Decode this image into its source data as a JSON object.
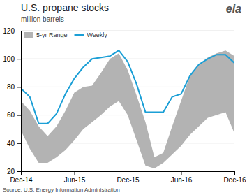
{
  "chart_data": {
    "type": "area_line",
    "title": "U.S. propane stocks",
    "subtitle": "million barrels",
    "source": "Source: U.S. Energy Information Administration",
    "annotations": [
      "eia"
    ],
    "categories": [
      "Dec-14",
      null,
      null,
      null,
      null,
      null,
      "Jun-15",
      null,
      null,
      null,
      null,
      null,
      "Dec-15",
      null,
      null,
      null,
      null,
      null,
      "Jun-16",
      null,
      null,
      null,
      null,
      null,
      "Dec-16"
    ],
    "series": [
      {
        "name": "5-yr Range",
        "type": "area",
        "color": "#b3b3b3",
        "lower": [
          49,
          36,
          26,
          26,
          30,
          35,
          42,
          50,
          55,
          60,
          66,
          70,
          60,
          42,
          24,
          22,
          26,
          32,
          38,
          46,
          52,
          58,
          60,
          62,
          47
        ],
        "upper": [
          70,
          63,
          52,
          45,
          52,
          63,
          76,
          80,
          81,
          90,
          100,
          104,
          92,
          74,
          55,
          30,
          33,
          52,
          70,
          88,
          96,
          101,
          104,
          106,
          102
        ]
      },
      {
        "name": "Weekly",
        "type": "line",
        "color": "#1b9fd6",
        "values": [
          79,
          73,
          54,
          54,
          61,
          75,
          86,
          94,
          100,
          101,
          102,
          106,
          98,
          82,
          62,
          62,
          62,
          73,
          75,
          88,
          96,
          100,
          103,
          103,
          97
        ]
      }
    ],
    "ylim": [
      20,
      120
    ],
    "yticks": [
      20,
      40,
      60,
      80,
      100,
      120
    ],
    "grid": true,
    "legend": "upper left"
  }
}
